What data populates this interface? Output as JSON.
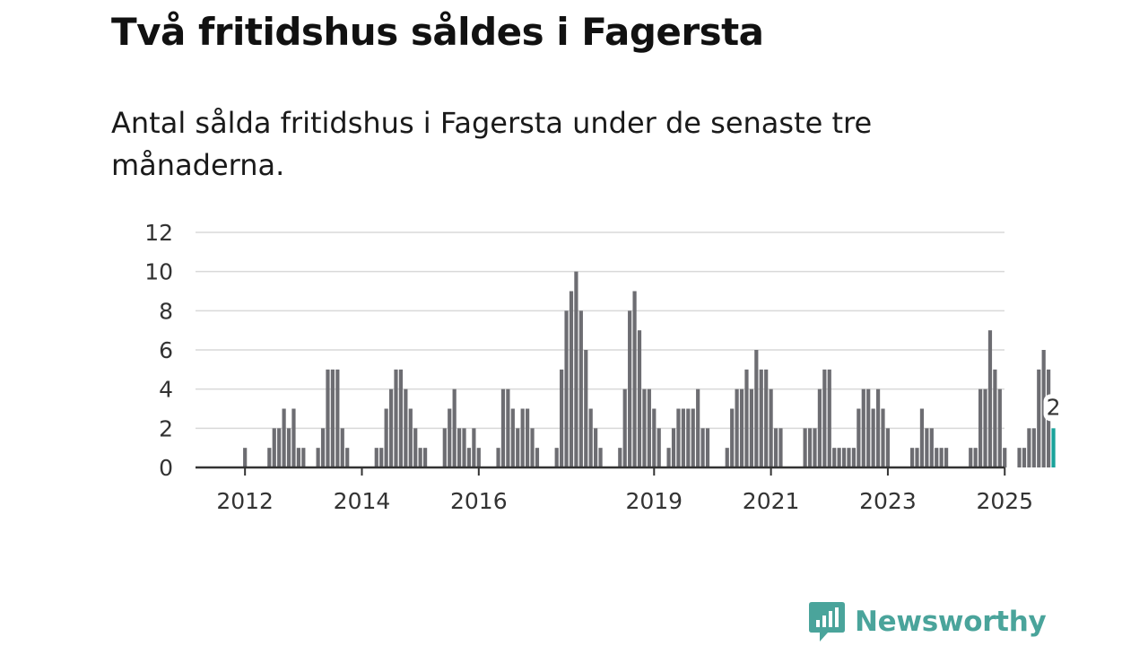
{
  "title": "Två fritidshus såldes i Fagersta",
  "subtitle": "Antal sålda fritidshus i Fagersta under de senaste tre månaderna.",
  "brand": {
    "name": "Newsworthy",
    "color": "#4aa49b",
    "icon": "newsworthy-logo-icon"
  },
  "colors": {
    "bar": "#6d6d72",
    "highlight": "#1aa39b",
    "grid": "#d9d9d9",
    "axis": "#333333"
  },
  "chart_data": {
    "type": "bar",
    "title": "Två fritidshus såldes i Fagersta",
    "subtitle": "Antal sålda fritidshus i Fagersta under de senaste tre månaderna.",
    "xlabel": "",
    "ylabel": "",
    "ylim": [
      0,
      12
    ],
    "yticks": [
      0,
      2,
      4,
      6,
      8,
      10,
      12
    ],
    "grid": true,
    "legend": "none",
    "x_start": "2011-04",
    "x_end": "2025-10",
    "xtick_labels": [
      {
        "label": "2012",
        "month": "2012-01"
      },
      {
        "label": "2014",
        "month": "2014-01"
      },
      {
        "label": "2016",
        "month": "2016-01"
      },
      {
        "label": "2019",
        "month": "2019-01"
      },
      {
        "label": "2021",
        "month": "2021-01"
      },
      {
        "label": "2023",
        "month": "2023-01"
      },
      {
        "label": "2025",
        "month": "2025-01"
      }
    ],
    "series": [
      {
        "values": [
          {
            "month": "2012-01",
            "value": 1
          },
          {
            "month": "2012-06",
            "value": 1
          },
          {
            "month": "2012-07",
            "value": 2
          },
          {
            "month": "2012-08",
            "value": 2
          },
          {
            "month": "2012-09",
            "value": 3
          },
          {
            "month": "2012-10",
            "value": 2
          },
          {
            "month": "2012-11",
            "value": 3
          },
          {
            "month": "2012-12",
            "value": 1
          },
          {
            "month": "2013-01",
            "value": 1
          },
          {
            "month": "2013-04",
            "value": 1
          },
          {
            "month": "2013-05",
            "value": 2
          },
          {
            "month": "2013-06",
            "value": 5
          },
          {
            "month": "2013-07",
            "value": 5
          },
          {
            "month": "2013-08",
            "value": 5
          },
          {
            "month": "2013-09",
            "value": 2
          },
          {
            "month": "2013-10",
            "value": 1
          },
          {
            "month": "2014-04",
            "value": 1
          },
          {
            "month": "2014-05",
            "value": 1
          },
          {
            "month": "2014-06",
            "value": 3
          },
          {
            "month": "2014-07",
            "value": 4
          },
          {
            "month": "2014-08",
            "value": 5
          },
          {
            "month": "2014-09",
            "value": 5
          },
          {
            "month": "2014-10",
            "value": 4
          },
          {
            "month": "2014-11",
            "value": 3
          },
          {
            "month": "2014-12",
            "value": 2
          },
          {
            "month": "2015-01",
            "value": 1
          },
          {
            "month": "2015-02",
            "value": 1
          },
          {
            "month": "2015-06",
            "value": 2
          },
          {
            "month": "2015-07",
            "value": 3
          },
          {
            "month": "2015-08",
            "value": 4
          },
          {
            "month": "2015-09",
            "value": 2
          },
          {
            "month": "2015-10",
            "value": 2
          },
          {
            "month": "2015-11",
            "value": 1
          },
          {
            "month": "2015-12",
            "value": 2
          },
          {
            "month": "2016-01",
            "value": 1
          },
          {
            "month": "2016-05",
            "value": 1
          },
          {
            "month": "2016-06",
            "value": 4
          },
          {
            "month": "2016-07",
            "value": 4
          },
          {
            "month": "2016-08",
            "value": 3
          },
          {
            "month": "2016-09",
            "value": 2
          },
          {
            "month": "2016-10",
            "value": 3
          },
          {
            "month": "2016-11",
            "value": 3
          },
          {
            "month": "2016-12",
            "value": 2
          },
          {
            "month": "2017-01",
            "value": 1
          },
          {
            "month": "2017-05",
            "value": 1
          },
          {
            "month": "2017-06",
            "value": 5
          },
          {
            "month": "2017-07",
            "value": 8
          },
          {
            "month": "2017-08",
            "value": 9
          },
          {
            "month": "2017-09",
            "value": 10
          },
          {
            "month": "2017-10",
            "value": 8
          },
          {
            "month": "2017-11",
            "value": 6
          },
          {
            "month": "2017-12",
            "value": 3
          },
          {
            "month": "2018-01",
            "value": 2
          },
          {
            "month": "2018-02",
            "value": 1
          },
          {
            "month": "2018-06",
            "value": 1
          },
          {
            "month": "2018-07",
            "value": 4
          },
          {
            "month": "2018-08",
            "value": 8
          },
          {
            "month": "2018-09",
            "value": 9
          },
          {
            "month": "2018-10",
            "value": 7
          },
          {
            "month": "2018-11",
            "value": 4
          },
          {
            "month": "2018-12",
            "value": 4
          },
          {
            "month": "2019-01",
            "value": 3
          },
          {
            "month": "2019-02",
            "value": 2
          },
          {
            "month": "2019-04",
            "value": 1
          },
          {
            "month": "2019-05",
            "value": 2
          },
          {
            "month": "2019-06",
            "value": 3
          },
          {
            "month": "2019-07",
            "value": 3
          },
          {
            "month": "2019-08",
            "value": 3
          },
          {
            "month": "2019-09",
            "value": 3
          },
          {
            "month": "2019-10",
            "value": 4
          },
          {
            "month": "2019-11",
            "value": 2
          },
          {
            "month": "2019-12",
            "value": 2
          },
          {
            "month": "2020-04",
            "value": 1
          },
          {
            "month": "2020-05",
            "value": 3
          },
          {
            "month": "2020-06",
            "value": 4
          },
          {
            "month": "2020-07",
            "value": 4
          },
          {
            "month": "2020-08",
            "value": 5
          },
          {
            "month": "2020-09",
            "value": 4
          },
          {
            "month": "2020-10",
            "value": 6
          },
          {
            "month": "2020-11",
            "value": 5
          },
          {
            "month": "2020-12",
            "value": 5
          },
          {
            "month": "2021-01",
            "value": 4
          },
          {
            "month": "2021-02",
            "value": 2
          },
          {
            "month": "2021-03",
            "value": 2
          },
          {
            "month": "2021-08",
            "value": 2
          },
          {
            "month": "2021-09",
            "value": 2
          },
          {
            "month": "2021-10",
            "value": 2
          },
          {
            "month": "2021-11",
            "value": 4
          },
          {
            "month": "2021-12",
            "value": 5
          },
          {
            "month": "2022-01",
            "value": 5
          },
          {
            "month": "2022-02",
            "value": 1
          },
          {
            "month": "2022-03",
            "value": 1
          },
          {
            "month": "2022-04",
            "value": 1
          },
          {
            "month": "2022-05",
            "value": 1
          },
          {
            "month": "2022-06",
            "value": 1
          },
          {
            "month": "2022-07",
            "value": 3
          },
          {
            "month": "2022-08",
            "value": 4
          },
          {
            "month": "2022-09",
            "value": 4
          },
          {
            "month": "2022-10",
            "value": 3
          },
          {
            "month": "2022-11",
            "value": 4
          },
          {
            "month": "2022-12",
            "value": 3
          },
          {
            "month": "2023-01",
            "value": 2
          },
          {
            "month": "2023-06",
            "value": 1
          },
          {
            "month": "2023-07",
            "value": 1
          },
          {
            "month": "2023-08",
            "value": 3
          },
          {
            "month": "2023-09",
            "value": 2
          },
          {
            "month": "2023-10",
            "value": 2
          },
          {
            "month": "2023-11",
            "value": 1
          },
          {
            "month": "2023-12",
            "value": 1
          },
          {
            "month": "2024-01",
            "value": 1
          },
          {
            "month": "2024-06",
            "value": 1
          },
          {
            "month": "2024-07",
            "value": 1
          },
          {
            "month": "2024-08",
            "value": 4
          },
          {
            "month": "2024-09",
            "value": 4
          },
          {
            "month": "2024-10",
            "value": 7
          },
          {
            "month": "2024-11",
            "value": 5
          },
          {
            "month": "2024-12",
            "value": 4
          },
          {
            "month": "2025-01",
            "value": 1
          },
          {
            "month": "2025-04",
            "value": 1
          },
          {
            "month": "2025-05",
            "value": 1
          },
          {
            "month": "2025-06",
            "value": 2
          },
          {
            "month": "2025-07",
            "value": 2
          },
          {
            "month": "2025-08",
            "value": 5
          },
          {
            "month": "2025-09",
            "value": 6
          },
          {
            "month": "2025-10",
            "value": 5
          }
        ]
      }
    ],
    "highlight": {
      "month": "2025-11",
      "value": 2,
      "label": "2"
    }
  }
}
